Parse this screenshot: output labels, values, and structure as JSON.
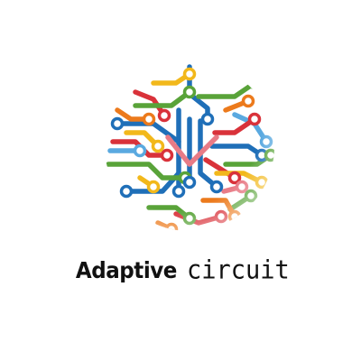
{
  "logo": {
    "icon": "circuit-globe-icon",
    "colors": {
      "blue": "#1f6fb8",
      "red": "#d9323a",
      "green": "#59a339",
      "yellow": "#f2b81b",
      "orange": "#ec7a1c",
      "pink": "#e87b86",
      "light_blue": "#5aa9e0"
    },
    "wordmark": {
      "part1": "Adaptive",
      "part2": "circuit",
      "color": "#111111"
    }
  }
}
